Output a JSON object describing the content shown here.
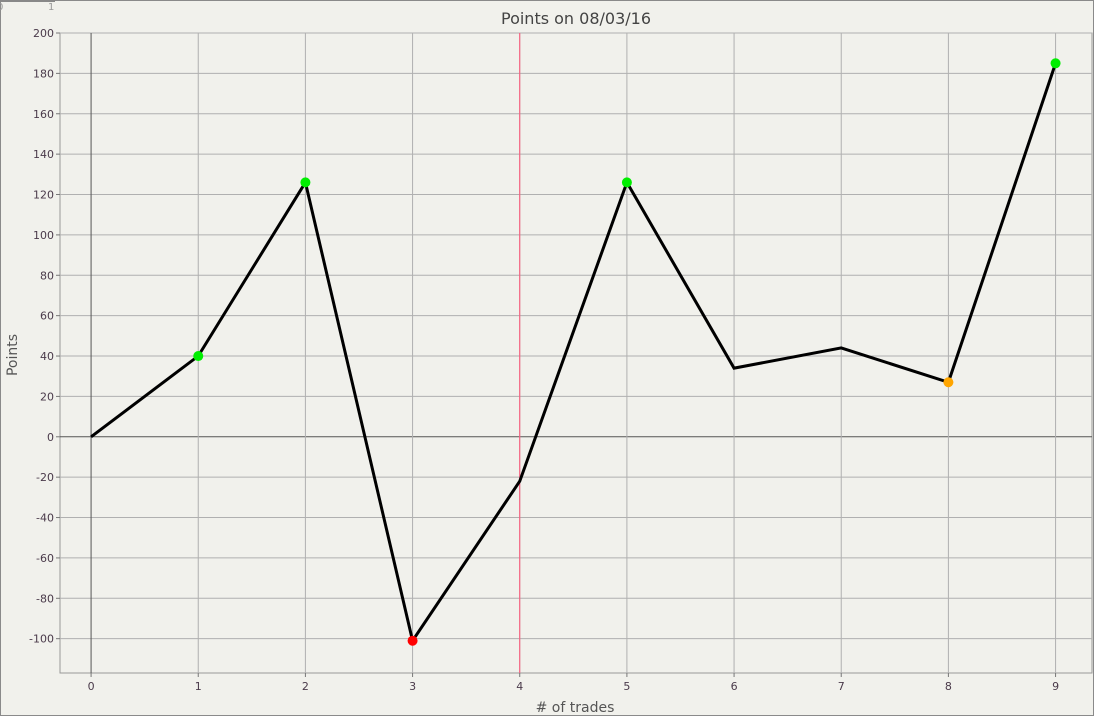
{
  "ruler": {
    "labels": [
      "0",
      "1"
    ]
  },
  "chart_data": {
    "type": "line",
    "title": "Points on 08/03/16",
    "xlabel": "# of trades",
    "ylabel": "Points",
    "x": [
      0,
      1,
      2,
      3,
      4,
      5,
      6,
      7,
      8,
      9
    ],
    "values": [
      0,
      40,
      126,
      -101,
      -22,
      126,
      34,
      44,
      27,
      185
    ],
    "marker_colors": [
      null,
      "#00ee00",
      "#00ee00",
      "#ff0000",
      null,
      "#00ee00",
      null,
      null,
      "#ffa500",
      "#00ee00"
    ],
    "xlim": [
      -0.29,
      9.34
    ],
    "ylim": [
      -117,
      200
    ],
    "xticks": [
      "0",
      "1",
      "2",
      "3",
      "4",
      "5",
      "6",
      "7",
      "8",
      "9"
    ],
    "yticks": [
      "200",
      "180",
      "160",
      "140",
      "120",
      "100",
      "80",
      "60",
      "40",
      "20",
      "0",
      "-20",
      "-40",
      "-60",
      "-80",
      "-100"
    ],
    "vertical_marker_x": 4,
    "vertical_marker_color": "#ff5577",
    "line_color": "#000000",
    "grid": true
  }
}
